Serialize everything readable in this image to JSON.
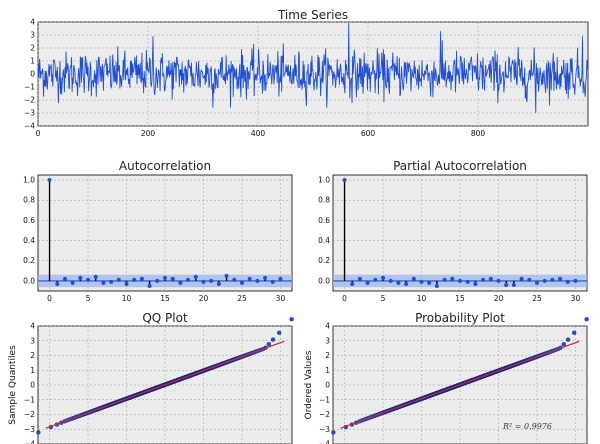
{
  "chart_data": [
    {
      "id": "ts",
      "type": "line",
      "title": "Time Series",
      "xlabel": "",
      "ylabel": "",
      "xlim": [
        0,
        1000
      ],
      "ylim": [
        -4,
        4
      ],
      "xticks": [
        0,
        200,
        400,
        600,
        800
      ],
      "yticks": [
        -4,
        -3,
        -2,
        -1,
        0,
        1,
        2,
        3,
        4
      ],
      "grid": true,
      "n_points": 1000,
      "line_color": "#1f4fd6",
      "values_note": "",
      "peaks": [
        {
          "x": 565,
          "y": 3.9
        },
        {
          "x": 209,
          "y": 2.9
        },
        {
          "x": 732,
          "y": 3.3
        },
        {
          "x": 990,
          "y": 2.9
        },
        {
          "x": 318,
          "y": -2.6
        },
        {
          "x": 905,
          "y": -3.0
        }
      ]
    },
    {
      "id": "acf",
      "type": "bar",
      "title": "Autocorrelation",
      "xlabel": "",
      "ylabel": "",
      "xlim": [
        -1.5,
        31.5
      ],
      "ylim": [
        -0.1,
        1.05
      ],
      "xticks": [
        0,
        5,
        10,
        15,
        20,
        25,
        30
      ],
      "yticks": [
        0.0,
        0.2,
        0.4,
        0.6,
        0.8,
        1.0
      ],
      "grid": true,
      "lags": [
        0,
        1,
        2,
        3,
        4,
        5,
        6,
        7,
        8,
        9,
        10,
        11,
        12,
        13,
        14,
        15,
        16,
        17,
        18,
        19,
        20,
        21,
        22,
        23,
        24,
        25,
        26,
        27,
        28,
        29,
        30
      ],
      "values": [
        1.0,
        -0.03,
        0.02,
        -0.02,
        0.03,
        0.01,
        0.04,
        -0.02,
        -0.01,
        0.01,
        -0.03,
        0.01,
        0.02,
        -0.05,
        0.0,
        0.03,
        0.02,
        -0.02,
        0.01,
        0.04,
        -0.01,
        0.0,
        -0.03,
        0.05,
        0.01,
        -0.02,
        0.02,
        0.0,
        0.03,
        -0.01,
        0.02
      ],
      "confidence": 0.062,
      "marker_color": "#1f4fd6",
      "stem_color": "#000000"
    },
    {
      "id": "pacf",
      "type": "bar",
      "title": "Partial Autocorrelation",
      "xlabel": "",
      "ylabel": "",
      "xlim": [
        -1.5,
        31.5
      ],
      "ylim": [
        -0.1,
        1.05
      ],
      "xticks": [
        0,
        5,
        10,
        15,
        20,
        25,
        30
      ],
      "yticks": [
        0.0,
        0.2,
        0.4,
        0.6,
        0.8,
        1.0
      ],
      "grid": true,
      "lags": [
        0,
        1,
        2,
        3,
        4,
        5,
        6,
        7,
        8,
        9,
        10,
        11,
        12,
        13,
        14,
        15,
        16,
        17,
        18,
        19,
        20,
        21,
        22,
        23,
        24,
        25,
        26,
        27,
        28,
        29,
        30
      ],
      "values": [
        1.0,
        -0.03,
        0.02,
        -0.02,
        0.01,
        0.03,
        0.0,
        -0.02,
        -0.03,
        0.02,
        -0.01,
        -0.02,
        -0.05,
        0.01,
        0.02,
        0.0,
        -0.01,
        -0.03,
        0.01,
        0.02,
        0.0,
        -0.04,
        -0.04,
        0.02,
        0.01,
        -0.02,
        0.0,
        0.01,
        0.02,
        -0.01,
        0.0
      ],
      "confidence": 0.062,
      "marker_color": "#1f4fd6",
      "stem_color": "#000000"
    },
    {
      "id": "qq",
      "type": "scatter",
      "title": "QQ Plot",
      "xlabel": "",
      "ylabel": "Sample Quantiles",
      "xlim": [
        -4,
        4
      ],
      "ylim": [
        -4,
        4
      ],
      "yticks": [
        -4,
        -3,
        -2,
        -1,
        0,
        1,
        2,
        3,
        4
      ],
      "grid": true,
      "n_points": 1000,
      "fit_line": {
        "slope": 0.95,
        "intercept": 0.02,
        "color": "#e0221c"
      },
      "marker_color": "#1f4fd6"
    },
    {
      "id": "prob",
      "type": "scatter",
      "title": "Probability Plot",
      "xlabel": "",
      "ylabel": "Ordered Values",
      "xlim": [
        -4,
        4
      ],
      "ylim": [
        -4,
        4
      ],
      "yticks": [
        -4,
        -3,
        -2,
        -1,
        0,
        1,
        2,
        3,
        4
      ],
      "grid": true,
      "n_points": 1000,
      "fit_line": {
        "slope": 0.95,
        "intercept": 0.02,
        "color": "#e0221c"
      },
      "marker_color": "#1f4fd6",
      "annotation": "R² = 0.9976"
    }
  ]
}
